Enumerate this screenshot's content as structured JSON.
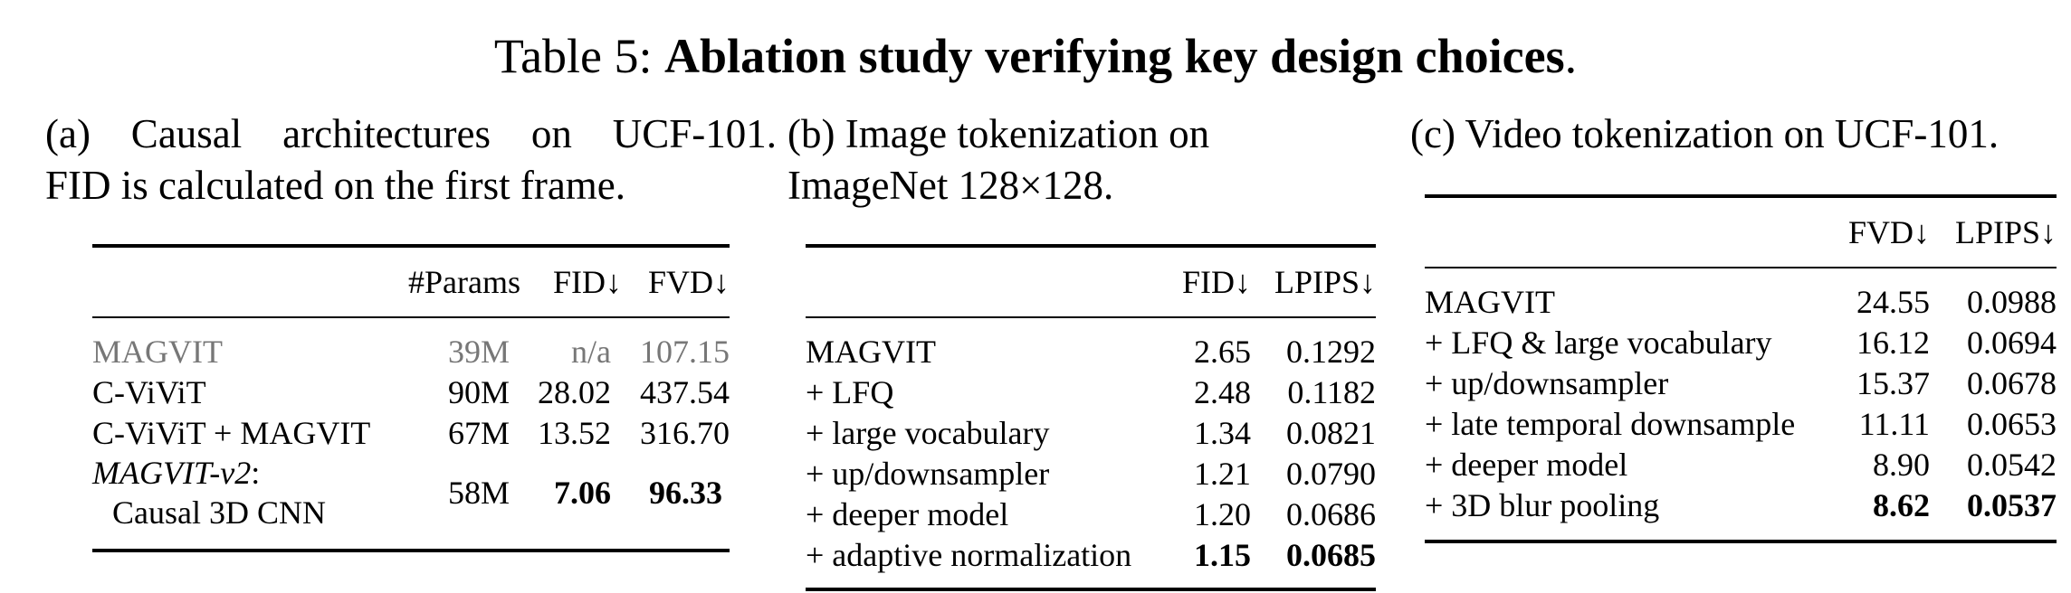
{
  "title": {
    "prefix": "Table 5: ",
    "bold": "Ablation study verifying key design choices",
    "suffix": "."
  },
  "sub_a": {
    "line1": "(a) Causal architectures on UCF-101.",
    "line2": "FID is calculated on the first frame."
  },
  "sub_b": {
    "line1": "(b) Image tokenization on",
    "line2": "ImageNet 128×128."
  },
  "sub_c": {
    "line1": "(c) Video tokenization on UCF-101."
  },
  "table_a": {
    "headers": [
      "",
      "#Params",
      "FID↓",
      "FVD↓"
    ],
    "rows": [
      [
        "MAGVIT",
        "39M",
        "n/a",
        "107.15"
      ],
      [
        "C-ViViT",
        "90M",
        "28.02",
        "437.54"
      ],
      [
        "C-ViViT + MAGVIT",
        "67M",
        "13.52",
        "316.70"
      ]
    ],
    "last_row": {
      "name_line1": "MAGVIT-v2",
      "name_colon": ":",
      "name_line2": "Causal 3D CNN",
      "params": "58M",
      "fid": "7.06",
      "fvd": "96.33"
    }
  },
  "table_b": {
    "headers": [
      "",
      "FID↓",
      "LPIPS↓"
    ],
    "rows": [
      [
        "MAGVIT",
        "2.65",
        "0.1292"
      ],
      [
        "+ LFQ",
        "2.48",
        "0.1182"
      ],
      [
        "+ large vocabulary",
        "1.34",
        "0.0821"
      ],
      [
        "+ up/downsampler",
        "1.21",
        "0.0790"
      ],
      [
        "+ deeper model",
        "1.20",
        "0.0686"
      ],
      [
        "+ adaptive normalization",
        "1.15",
        "0.0685"
      ]
    ]
  },
  "table_c": {
    "headers": [
      "",
      "FVD↓",
      "LPIPS↓"
    ],
    "rows": [
      [
        "MAGVIT",
        "24.55",
        "0.0988"
      ],
      [
        "+ LFQ & large vocabulary",
        "16.12",
        "0.0694"
      ],
      [
        "+ up/downsampler",
        "15.37",
        "0.0678"
      ],
      [
        "+ late temporal downsample",
        "11.11",
        "0.0653"
      ],
      [
        "+ deeper model",
        "8.90",
        "0.0542"
      ],
      [
        "+ 3D blur pooling",
        "8.62",
        "0.0537"
      ]
    ]
  }
}
